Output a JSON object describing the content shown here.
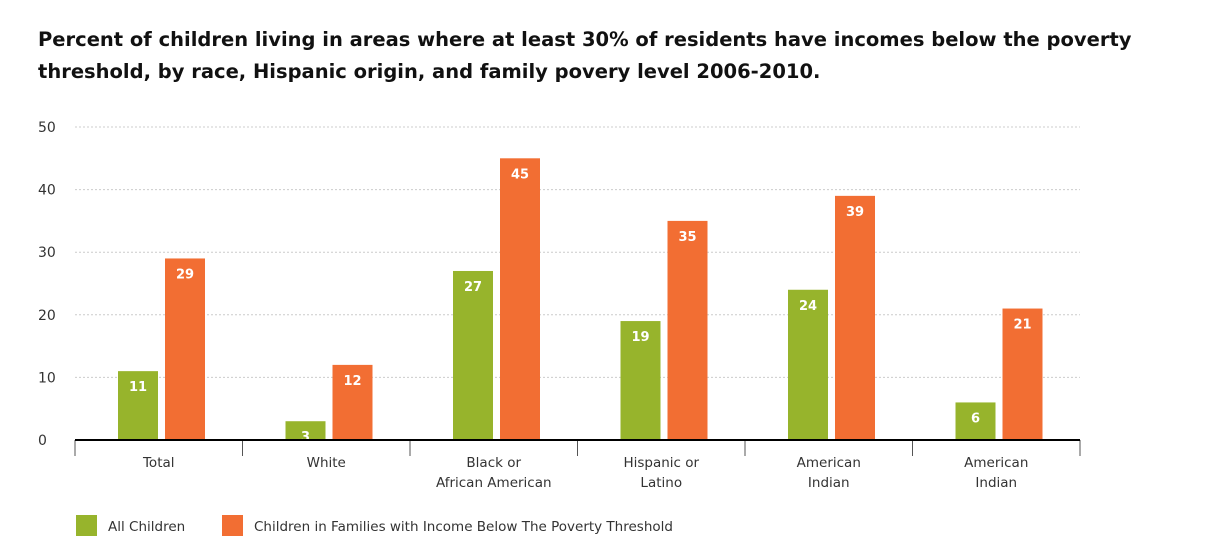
{
  "chart_data": {
    "type": "bar",
    "title": "Percent of children living in areas where at least 30% of residents have incomes below the poverty threshold, by race, Hispanic origin, and family povery level 2006-2010.",
    "categories": [
      [
        "Total"
      ],
      [
        "White"
      ],
      [
        "Black or",
        "African American"
      ],
      [
        "Hispanic or",
        "Latino"
      ],
      [
        "American",
        "Indian"
      ],
      [
        "American",
        "Indian"
      ]
    ],
    "series": [
      {
        "name": "All Children",
        "color": "#97b42c",
        "values": [
          11,
          3,
          27,
          19,
          24,
          6
        ]
      },
      {
        "name": "Children in Families with Income Below The Poverty Threshold",
        "color": "#f26e33",
        "values": [
          29,
          12,
          45,
          35,
          39,
          21
        ]
      }
    ],
    "ylim": [
      0,
      50
    ],
    "yticks": [
      0,
      10,
      20,
      30,
      40,
      50
    ],
    "grid": true,
    "legend": "bottom-left"
  }
}
